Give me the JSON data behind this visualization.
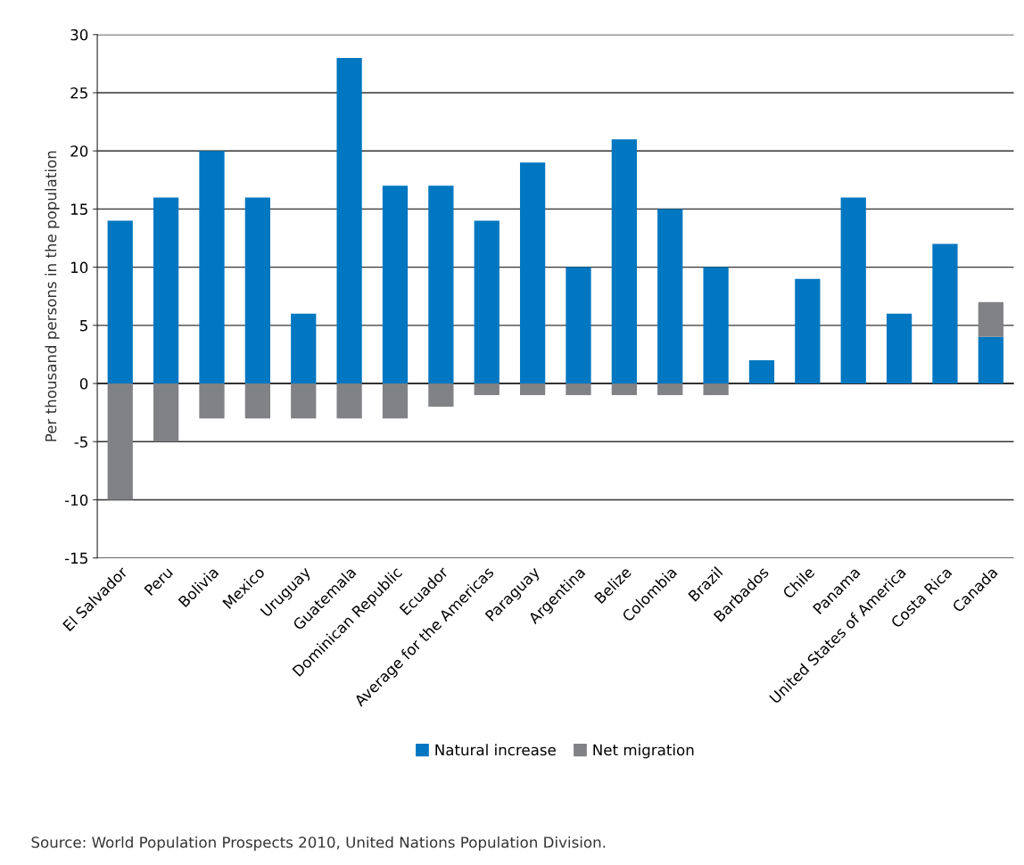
{
  "chart_data": {
    "type": "bar",
    "stacked": true,
    "ylabel": "Per thousand persons in the population",
    "categories": [
      "El Salvador",
      "Peru",
      "Bolivia",
      "Mexico",
      "Uruguay",
      "Guatemala",
      "Dominican Republic",
      "Ecuador",
      "Average for the Americas",
      "Paraguay",
      "Argentina",
      "Belize",
      "Colombia",
      "Brazil",
      "Barbados",
      "Chile",
      "Panama",
      "United States of America",
      "Costa Rica",
      "Canada"
    ],
    "series": [
      {
        "name": "Natural increase",
        "color": "#0077c0",
        "values": [
          14,
          16,
          20,
          16,
          6,
          28,
          17,
          17,
          14,
          19,
          10,
          21,
          15,
          10,
          2,
          9,
          16,
          6,
          12,
          4
        ]
      },
      {
        "name": "Net migration",
        "color": "#808285",
        "values": [
          -10,
          -5,
          -3,
          -3,
          -3,
          -3,
          -3,
          -2,
          -1,
          -1,
          -1,
          -1,
          -1,
          -1,
          0,
          0,
          0,
          0,
          0,
          3
        ]
      }
    ],
    "ylim": [
      -15,
      30
    ],
    "yticks": [
      -15,
      -10,
      -5,
      0,
      5,
      10,
      15,
      20,
      25,
      30
    ],
    "grid": "y",
    "legend": "bottom",
    "annotations": [
      "Source: World Population Prospects 2010, United Nations Population Division."
    ]
  }
}
